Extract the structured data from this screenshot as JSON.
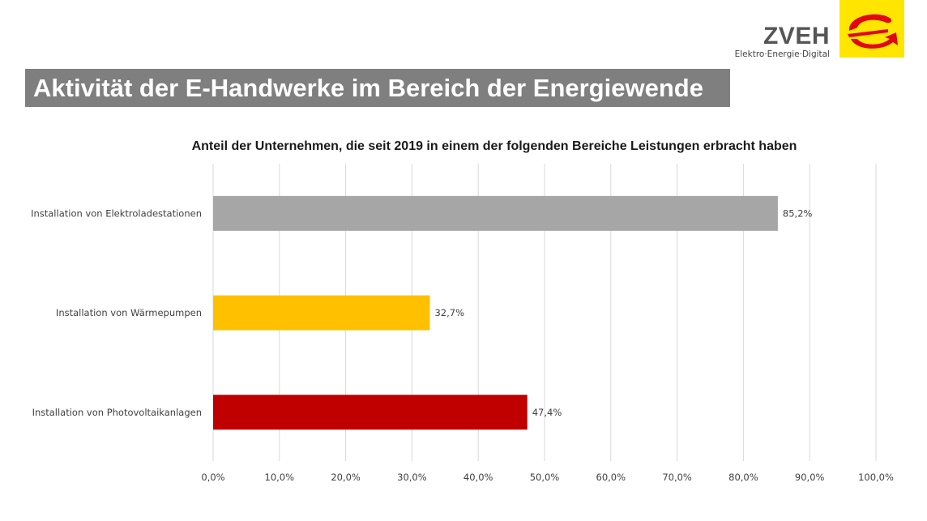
{
  "logo": {
    "name": "ZVEH",
    "tagline": "Elektro·Energie·Digital",
    "colors": {
      "background": "#ffe500",
      "mark": "#e30613"
    }
  },
  "slide": {
    "title": "Aktivität der E-Handwerke im Bereich der Energiewende"
  },
  "chart_data": {
    "type": "bar",
    "orientation": "horizontal",
    "title": "Anteil der Unternehmen, die seit 2019 in einem der folgenden Bereiche Leistungen erbracht haben",
    "categories": [
      "Installation von Elektroladestationen",
      "Installation von Wärmepumpen",
      "Installation von Photovoltaikanlagen"
    ],
    "values": [
      85.2,
      32.7,
      47.4
    ],
    "data_labels": [
      "85,2%",
      "32,7%",
      "47,4%"
    ],
    "colors": [
      "#a6a6a6",
      "#ffc000",
      "#c00000"
    ],
    "xlim": [
      0,
      100
    ],
    "x_ticks": [
      0,
      10,
      20,
      30,
      40,
      50,
      60,
      70,
      80,
      90,
      100
    ],
    "x_tick_labels": [
      "0,0%",
      "10,0%",
      "20,0%",
      "30,0%",
      "40,0%",
      "50,0%",
      "60,0%",
      "70,0%",
      "80,0%",
      "90,0%",
      "100,0%"
    ],
    "grid": true,
    "legend": "none",
    "xlabel": "",
    "ylabel": ""
  }
}
